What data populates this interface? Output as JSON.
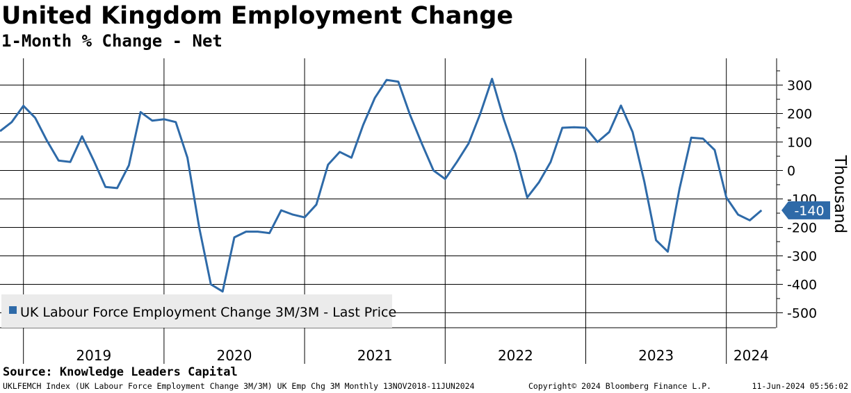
{
  "header": {
    "title": "United Kingdom Employment Change",
    "subtitle": "1-Month % Change - Net"
  },
  "footer": {
    "source": "Source: Knowledge Leaders Capital",
    "left": "UKLFEMCH Index (UK Labour Force Employment Change 3M/3M) UK Emp Chg 3M  Monthly 13NOV2018-11JUN2024",
    "middle": "Copyright© 2024 Bloomberg Finance L.P.",
    "right": "11-Jun-2024 05:56:02"
  },
  "colors": {
    "series": "#2e6aa8",
    "grid": "#000000",
    "legend_bg": "#ebebeb"
  },
  "chart_data": {
    "type": "line",
    "x": [
      "2018-11",
      "2018-12",
      "2019-01",
      "2019-02",
      "2019-03",
      "2019-04",
      "2019-05",
      "2019-06",
      "2019-07",
      "2019-08",
      "2019-09",
      "2019-10",
      "2019-11",
      "2019-12",
      "2020-01",
      "2020-02",
      "2020-03",
      "2020-04",
      "2020-05",
      "2020-06",
      "2020-07",
      "2020-08",
      "2020-09",
      "2020-10",
      "2020-11",
      "2020-12",
      "2021-01",
      "2021-02",
      "2021-03",
      "2021-04",
      "2021-05",
      "2021-06",
      "2021-07",
      "2021-08",
      "2021-09",
      "2021-10",
      "2021-11",
      "2021-12",
      "2022-01",
      "2022-02",
      "2022-03",
      "2022-04",
      "2022-05",
      "2022-06",
      "2022-07",
      "2022-08",
      "2022-09",
      "2022-10",
      "2022-11",
      "2022-12",
      "2023-01",
      "2023-02",
      "2023-03",
      "2023-04",
      "2023-05",
      "2023-06",
      "2023-07",
      "2023-08",
      "2023-09",
      "2023-10",
      "2023-11",
      "2023-12",
      "2024-01",
      "2024-02",
      "2024-03",
      "2024-04"
    ],
    "series": [
      {
        "name": "UK Labour Force Employment Change 3M/3M - Last Price",
        "values": [
          138,
          170,
          227,
          185,
          105,
          35,
          30,
          120,
          35,
          -58,
          -62,
          18,
          205,
          175,
          180,
          170,
          45,
          -200,
          -400,
          -425,
          -235,
          -215,
          -215,
          -220,
          -140,
          -155,
          -165,
          -120,
          20,
          65,
          45,
          160,
          255,
          318,
          312,
          195,
          95,
          0,
          -30,
          30,
          95,
          200,
          322,
          180,
          60,
          -95,
          -42,
          30,
          150,
          152,
          150,
          100,
          135,
          228,
          135,
          -40,
          -245,
          -285,
          -65,
          115,
          112,
          72,
          -95,
          -155,
          -175,
          -140
        ]
      }
    ],
    "last_value_label": "-140",
    "ylabel": "Thousand",
    "ylim": [
      -540,
      380
    ],
    "yticks": [
      300,
      200,
      100,
      0,
      -100,
      -200,
      -300,
      -400,
      -500
    ],
    "ytick_labels": [
      "300",
      "200",
      "100",
      "0",
      "-100",
      "-200",
      "-300",
      "-400",
      "-500"
    ],
    "xtick_labels": [
      "2019",
      "2020",
      "2021",
      "2022",
      "2023",
      "2024"
    ],
    "xtick_year_starts": [
      "2019-01",
      "2020-01",
      "2021-01",
      "2022-01",
      "2023-01",
      "2024-01"
    ],
    "grid": true,
    "legend_position": "bottom-left",
    "y_axis_side": "right"
  }
}
